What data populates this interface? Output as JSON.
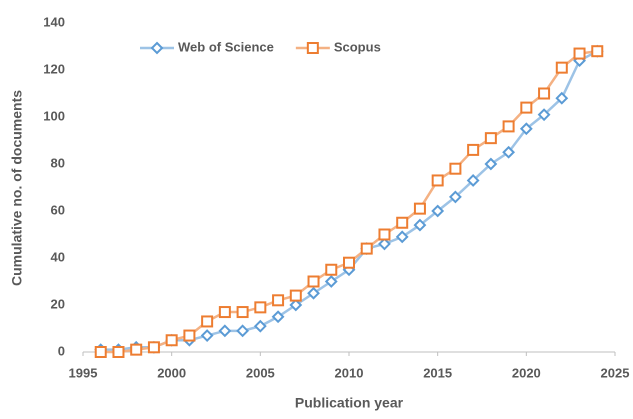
{
  "chart_data": {
    "type": "line",
    "x_label": "Publication year",
    "y_label": "Cumulative no. of documents",
    "x": [
      1996,
      1997,
      1998,
      1999,
      2000,
      2001,
      2002,
      2003,
      2004,
      2005,
      2006,
      2007,
      2008,
      2009,
      2010,
      2011,
      2012,
      2013,
      2014,
      2015,
      2016,
      2017,
      2018,
      2019,
      2020,
      2021,
      2022,
      2023,
      2024
    ],
    "series": [
      {
        "name": "Web of Science",
        "color": "#5b9bd5",
        "line_color": "#9dc3e6",
        "marker": "diamond",
        "values": [
          1,
          1,
          2,
          2,
          5,
          5,
          7,
          9,
          9,
          11,
          15,
          20,
          25,
          30,
          35,
          44,
          46,
          49,
          54,
          60,
          66,
          73,
          80,
          85,
          95,
          101,
          108,
          124,
          128
        ]
      },
      {
        "name": "Scopus",
        "color": "#ed7d31",
        "line_color": "#f4b183",
        "marker": "square",
        "values": [
          0,
          0,
          1,
          2,
          5,
          7,
          13,
          17,
          17,
          19,
          22,
          24,
          30,
          35,
          38,
          44,
          50,
          55,
          61,
          73,
          78,
          86,
          91,
          96,
          104,
          110,
          121,
          127,
          128
        ]
      }
    ],
    "xlim": [
      1995,
      2025
    ],
    "xticks": [
      1995,
      2000,
      2005,
      2010,
      2015,
      2020,
      2025
    ],
    "ylim": [
      0,
      140
    ],
    "yticks": [
      0,
      20,
      40,
      60,
      80,
      100,
      120,
      140
    ],
    "grid": false,
    "legend": "top"
  }
}
